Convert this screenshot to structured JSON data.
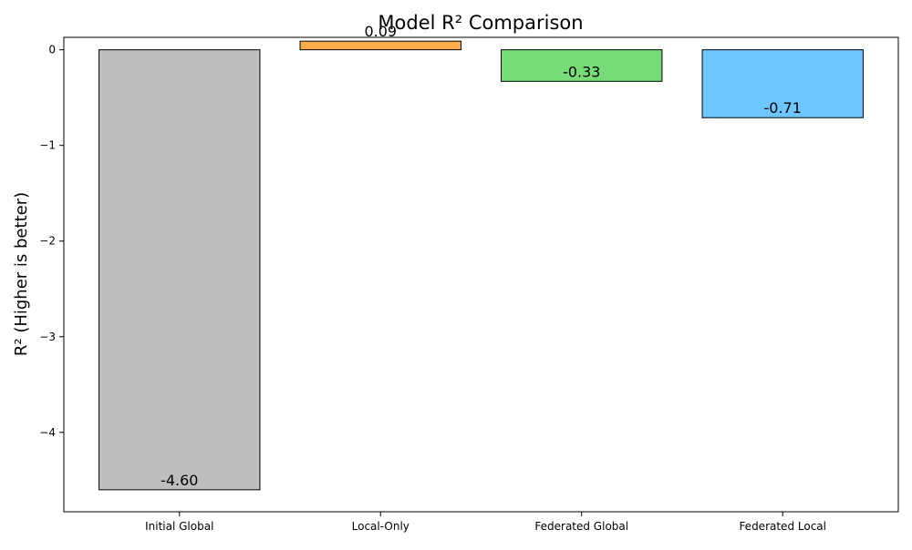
{
  "chart_data": {
    "type": "bar",
    "title": "Model R² Comparison",
    "xlabel": "",
    "ylabel": "R² (Higher is better)",
    "categories": [
      "Initial Global",
      "Local-Only",
      "Federated Global",
      "Federated Local"
    ],
    "values": [
      -4.6,
      0.09,
      -0.33,
      -0.71
    ],
    "value_labels": [
      "-4.60",
      "0.09",
      "-0.33",
      "-0.71"
    ],
    "bar_colors": [
      "#bebebe",
      "#ffad4d",
      "#77dd77",
      "#6ec6ff"
    ],
    "bar_edge_color": "#000000",
    "yticks": [
      0,
      -1,
      -2,
      -3,
      -4
    ],
    "ytick_labels": [
      "0",
      "−1",
      "−2",
      "−3",
      "−4"
    ],
    "ylim": [
      -4.83,
      0.13
    ],
    "grid": false,
    "legend": "none"
  }
}
